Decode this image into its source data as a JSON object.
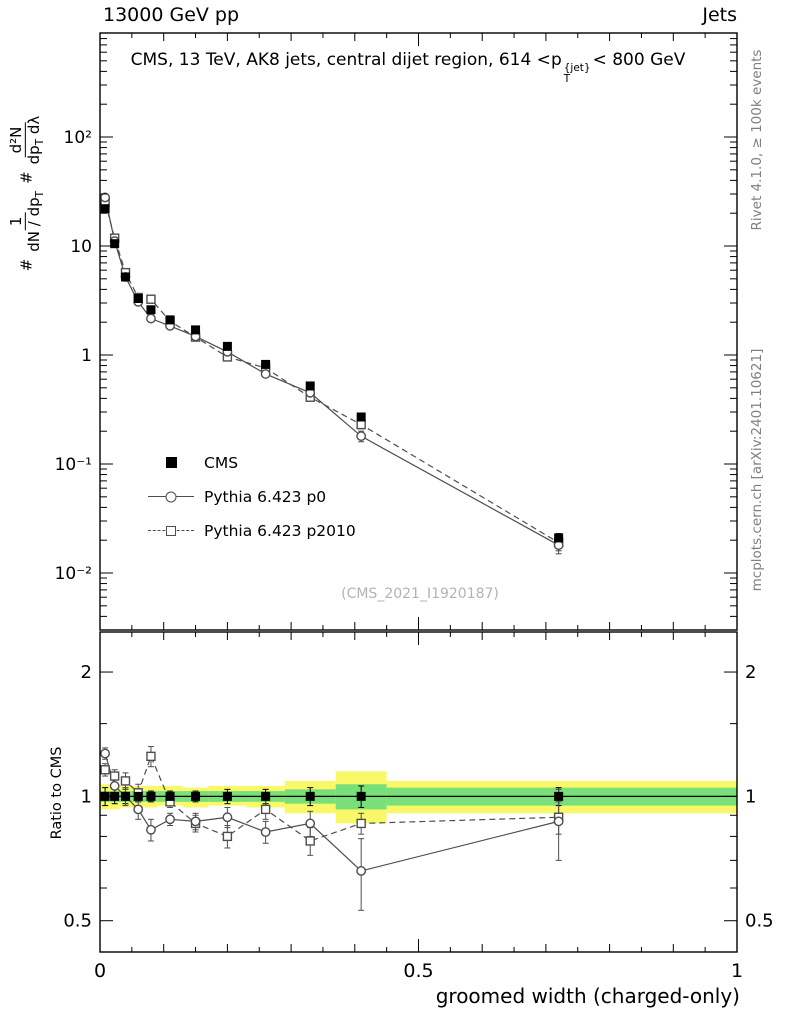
{
  "header": {
    "left": "13000 GeV pp",
    "right": "Jets"
  },
  "title": {
    "pre": "CMS, 13 TeV, AK8 jets, central dijet region, 614 <",
    "p": "p",
    "sup": "{jet}",
    "sub": "T",
    "post": "< 800 GeV"
  },
  "ylabel": {
    "hash1": "#",
    "f1num": "1",
    "f1den": "dN / dp",
    "f1den_sub": "T",
    "hash2": "#",
    "f2num": "d²N",
    "f2den": "dp",
    "f2den_sub": "T",
    "f2den_tail": " dλ"
  },
  "ratio_ylabel": "Ratio to CMS",
  "xlabel": "groomed width (charged-only)",
  "watermark": "(CMS_2021_I1920187)",
  "side_notes": {
    "top": "Rivet 4.1.0, ≥ 100k events",
    "bottom": "mcplots.cern.ch [arXiv:2401.10621]"
  },
  "legend": {
    "items": [
      {
        "label": "CMS",
        "marker": "filled-square"
      },
      {
        "label": "Pythia 6.423 p0",
        "marker": "open-circle",
        "line": "solid"
      },
      {
        "label": "Pythia 6.423 p2010",
        "marker": "open-square",
        "line": "dashed"
      }
    ]
  },
  "colors": {
    "data": "#000000",
    "mc": "#4d4d4d",
    "band_yellow": "#f8f868",
    "band_green": "#79e079"
  },
  "chart_data": {
    "type": "line",
    "title": "CMS, 13 TeV, AK8 jets, central dijet region, 614 < pT{jet} < 800 GeV",
    "xlabel": "groomed width (charged-only)",
    "ylabel": "# 1/(dN/dpT) # d²N/(dpT dλ)",
    "ratio_ylabel": "Ratio to CMS",
    "xlim": [
      0,
      1
    ],
    "ylim_main": [
      0.003,
      900
    ],
    "ylim_ratio": [
      0.42,
      2.5
    ],
    "log_y_main": true,
    "log_y_ratio": true,
    "grid": false,
    "legend_position": "inside-left",
    "xticks": {
      "values": [
        0,
        0.5,
        1
      ],
      "labels": [
        "0",
        "0.5",
        "1"
      ]
    },
    "yticks_main": {
      "values": [
        100,
        10,
        1,
        0.1,
        0.01
      ],
      "labels": [
        "10²",
        "10",
        "1",
        "10⁻¹",
        "10⁻²"
      ]
    },
    "yticks_ratio": {
      "values": [
        2,
        1,
        0.5
      ],
      "labels": [
        "2",
        "1",
        "0.5"
      ]
    },
    "x": [
      0.008,
      0.023,
      0.04,
      0.06,
      0.08,
      0.11,
      0.15,
      0.2,
      0.26,
      0.33,
      0.41,
      0.72
    ],
    "series": [
      {
        "name": "CMS",
        "marker": "filled-square",
        "color": "#000000",
        "values": [
          22,
          10.5,
          5.2,
          3.3,
          2.6,
          2.1,
          1.7,
          1.2,
          0.82,
          0.52,
          0.27,
          0.021
        ],
        "yerr": [
          1.2,
          0.5,
          0.25,
          0.15,
          0.12,
          0.08,
          0.07,
          0.05,
          0.04,
          0.03,
          0.02,
          0.002
        ]
      },
      {
        "name": "Pythia 6.423 p0",
        "marker": "open-circle",
        "line": "solid",
        "color": "#4d4d4d",
        "values": [
          27.9,
          11.1,
          5.2,
          3.07,
          2.16,
          1.85,
          1.48,
          1.07,
          0.67,
          0.45,
          0.18,
          0.018
        ],
        "yerr": [
          0.9,
          0.4,
          0.2,
          0.12,
          0.1,
          0.06,
          0.06,
          0.05,
          0.04,
          0.03,
          0.02,
          0.003
        ]
      },
      {
        "name": "Pythia 6.423 p2010",
        "marker": "open-square",
        "line": "dashed",
        "color": "#4d4d4d",
        "values": [
          25.5,
          11.8,
          5.7,
          3.37,
          3.25,
          2.04,
          1.46,
          0.96,
          0.76,
          0.41,
          0.23,
          0.019
        ],
        "yerr": [
          0.9,
          0.4,
          0.2,
          0.12,
          0.12,
          0.06,
          0.06,
          0.05,
          0.04,
          0.03,
          0.02,
          0.003
        ]
      }
    ],
    "ratio": {
      "reference": 1,
      "series": [
        {
          "name": "CMS",
          "marker": "filled-square",
          "color": "#000000",
          "values": [
            1,
            1,
            1,
            1,
            1,
            1,
            1,
            1,
            1,
            1,
            1,
            1
          ],
          "yerr": [
            0.05,
            0.04,
            0.04,
            0.03,
            0.03,
            0.03,
            0.03,
            0.04,
            0.04,
            0.05,
            0.06,
            0.05
          ]
        },
        {
          "name": "Pythia 6.423 p0",
          "marker": "open-circle",
          "line": "solid",
          "color": "#4d4d4d",
          "values": [
            1.27,
            1.06,
            1.0,
            0.93,
            0.83,
            0.88,
            0.87,
            0.89,
            0.82,
            0.86,
            0.66,
            0.87
          ],
          "yerr": [
            0.04,
            0.04,
            0.05,
            0.05,
            0.05,
            0.03,
            0.04,
            0.05,
            0.05,
            0.06,
            0.13,
            0.17
          ]
        },
        {
          "name": "Pythia 6.423 p2010",
          "marker": "open-square",
          "line": "dashed",
          "color": "#4d4d4d",
          "values": [
            1.16,
            1.12,
            1.09,
            1.02,
            1.25,
            0.97,
            0.86,
            0.8,
            0.93,
            0.78,
            0.86,
            0.89
          ],
          "yerr": [
            0.04,
            0.04,
            0.05,
            0.05,
            0.07,
            0.03,
            0.04,
            0.05,
            0.05,
            0.06,
            0.05,
            0.08
          ]
        }
      ],
      "bands": [
        {
          "xlo": 0,
          "xhi": 0.015,
          "yellow": [
            0.93,
            1.07
          ],
          "green": [
            0.97,
            1.03
          ]
        },
        {
          "xlo": 0.015,
          "xhi": 0.03,
          "yellow": [
            0.93,
            1.07
          ],
          "green": [
            0.97,
            1.03
          ]
        },
        {
          "xlo": 0.03,
          "xhi": 0.05,
          "yellow": [
            0.94,
            1.06
          ],
          "green": [
            0.97,
            1.03
          ]
        },
        {
          "xlo": 0.05,
          "xhi": 0.07,
          "yellow": [
            0.94,
            1.06
          ],
          "green": [
            0.97,
            1.03
          ]
        },
        {
          "xlo": 0.07,
          "xhi": 0.09,
          "yellow": [
            0.94,
            1.06
          ],
          "green": [
            0.97,
            1.03
          ]
        },
        {
          "xlo": 0.09,
          "xhi": 0.13,
          "yellow": [
            0.95,
            1.06
          ],
          "green": [
            0.97,
            1.03
          ]
        },
        {
          "xlo": 0.13,
          "xhi": 0.17,
          "yellow": [
            0.94,
            1.05
          ],
          "green": [
            0.97,
            1.03
          ]
        },
        {
          "xlo": 0.17,
          "xhi": 0.23,
          "yellow": [
            0.95,
            1.06
          ],
          "green": [
            0.97,
            1.03
          ]
        },
        {
          "xlo": 0.23,
          "xhi": 0.29,
          "yellow": [
            0.94,
            1.06
          ],
          "green": [
            0.97,
            1.03
          ]
        },
        {
          "xlo": 0.29,
          "xhi": 0.37,
          "yellow": [
            0.91,
            1.09
          ],
          "green": [
            0.96,
            1.04
          ]
        },
        {
          "xlo": 0.37,
          "xhi": 0.45,
          "yellow": [
            0.86,
            1.15
          ],
          "green": [
            0.93,
            1.07
          ]
        },
        {
          "xlo": 0.45,
          "xhi": 1.0,
          "yellow": [
            0.91,
            1.09
          ],
          "green": [
            0.95,
            1.05
          ]
        }
      ]
    }
  }
}
